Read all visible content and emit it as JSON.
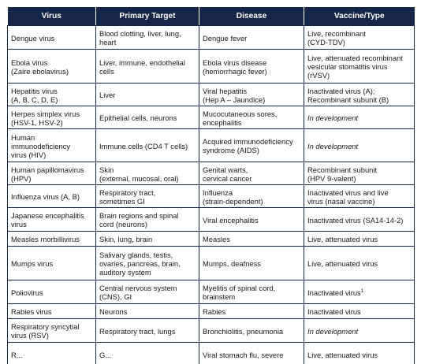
{
  "table": {
    "headers": [
      "Virus",
      "Primary Target",
      "Disease",
      "Vaccine/Type"
    ],
    "rows": [
      {
        "virus": "Dengue virus",
        "target": "Blood clotting, liver, lung,\nheart",
        "disease": "Dengue fever",
        "vaccine": "Live, recombinant\n(CYD-TDV)",
        "vaccine_style": "normal",
        "height": 30
      },
      {
        "virus": "Ebola virus\n(Zaire ebolavirus)",
        "target": "Liver, immune, endothelial\ncells",
        "disease": "Ebola virus disease\n(hemorrhagic fever)",
        "vaccine": "Live, attenuated recombinant\nvesicular stomatitis virus\n(rVSV)",
        "vaccine_style": "normal",
        "height": 43
      },
      {
        "virus": "Hepatitis virus\n(A, B, C, D, E)",
        "target": "Liver",
        "disease": "Viral hepatitis\n(Hep A – Jaundice)",
        "vaccine": "Inactivated virus (A);\nRecombinant subunit (B)",
        "vaccine_style": "normal",
        "height": 29
      },
      {
        "virus": "Herpes simplex virus\n(HSV-1, HSV-2)",
        "target": "Epithelial cells, neurons",
        "disease": "Mucocutaneous sores,\nencephalitis",
        "vaccine": "In development",
        "vaccine_style": "italic",
        "height": 29
      },
      {
        "virus": "Human\nimmunodeficiency\nvirus (HIV)",
        "target": "Immune cells (CD4 T cells)",
        "disease": "Acquired immunodeficiency\nsyndrome (AIDS)",
        "vaccine": "In development",
        "vaccine_style": "italic",
        "height": 42
      },
      {
        "virus": "Human papillomavirus\n(HPV)",
        "target": "Skin\n(external, mucosal, oral)",
        "disease": "Genital warts,\ncervical cancer",
        "vaccine": "Recombinant subunit\n(HPV 9-valent)",
        "vaccine_style": "normal",
        "height": 29
      },
      {
        "virus": "Influenza virus (A, B)",
        "target": "Respiratory tract,\nsometimes GI",
        "disease": "Influenza\n(strain-dependent)",
        "vaccine": "Inactivated virus and live\nvirus (nasal vaccine)",
        "vaccine_style": "normal",
        "height": 29
      },
      {
        "virus": "Japanese encephalitis\nvirus",
        "target": "Brain regions and spinal\ncord (neurons)",
        "disease": "Viral encephalitis",
        "vaccine": "Inactivated virus (SA14-14-2)",
        "vaccine_style": "normal",
        "height": 30
      },
      {
        "virus": "Measles morbillivirus",
        "target": "Skin, lung, brain",
        "disease": "Measles",
        "vaccine": "Live, attenuated virus",
        "vaccine_style": "normal",
        "height": 19
      },
      {
        "virus": "Mumps virus",
        "target": "Salivary glands, testis,\novaries, pancreas, brain,\nauditory system",
        "disease": "Mumps, deafness",
        "vaccine": "Live, attenuated virus",
        "vaccine_style": "normal",
        "height": 43
      },
      {
        "virus": "Poliovirus",
        "target": "Central nervous system\n(CNS), GI",
        "disease": "Myelitis of spinal cord,\nbrainstem",
        "vaccine": "Inactivated virus",
        "vaccine_sup": "1",
        "vaccine_style": "normal",
        "height": 30
      },
      {
        "virus": "Rabies virus",
        "target": "Neurons",
        "disease": "Rabies",
        "vaccine": "Inactivated virus",
        "vaccine_style": "normal",
        "height": 19
      },
      {
        "virus": "Respiratory syncytial\nvirus (RSV)",
        "target": "Respiratory tract, lungs",
        "disease": "Bronchiolitis, pneumonia",
        "vaccine": "In development",
        "vaccine_style": "italic",
        "height": 30
      },
      {
        "virus": "R...",
        "target": "G...",
        "disease": "Viral stomach flu, severe",
        "vaccine": "Live, attenuated virus",
        "vaccine_style": "normal",
        "height": 30
      }
    ]
  }
}
